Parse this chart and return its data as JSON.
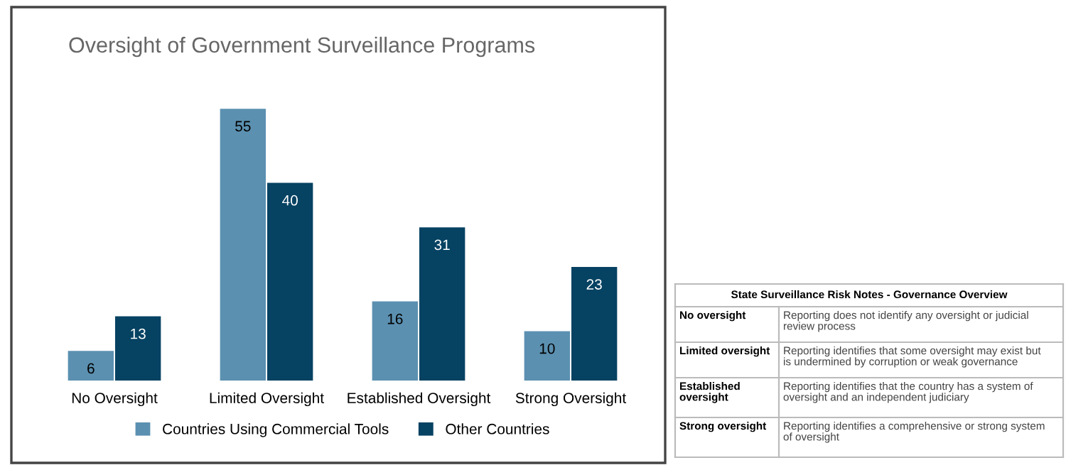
{
  "chart_data": [
    {
      "type": "bar",
      "title": "Oversight of Government Surveillance Programs",
      "categories": [
        "No Oversight",
        "Limited Oversight",
        "Established Oversight",
        "Strong Oversight"
      ],
      "series": [
        {
          "name": "Countries Using Commercial Tools",
          "color": "#5b90b0",
          "values": [
            6,
            55,
            16,
            10
          ]
        },
        {
          "name": "Other Countries",
          "color": "#064262",
          "values": [
            13,
            40,
            31,
            23
          ]
        }
      ],
      "data_labels": true,
      "legend": "bottom",
      "grid": false
    },
    {
      "type": "other",
      "title": "State Surveillance Risk Notes - Governance Overview",
      "annotations": [
        "No oversight",
        "Reporting does not identify any oversight or judicial\nreview process",
        "Limited oversight",
        "Reporting identifies that some oversight may exist but\nis undermined by corruption or weak governance",
        "Established\noversight",
        "Reporting identifies that the country has a system of\noversight and an independent judiciary",
        "Strong oversight",
        "Reporting identifies a comprehensive or strong system\nof oversight"
      ]
    }
  ]
}
